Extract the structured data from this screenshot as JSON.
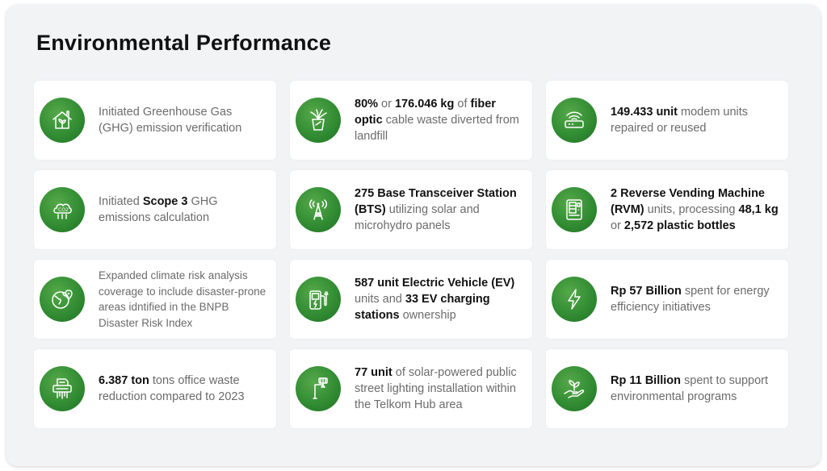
{
  "title": "Environmental Performance",
  "cards": [
    {
      "icon": "green-house-icon",
      "parts": [
        {
          "t": "Initiated Greenhouse Gas (GHG) emission verification",
          "b": false
        }
      ]
    },
    {
      "icon": "fiber-optic-bin-icon",
      "parts": [
        {
          "t": "80%",
          "b": true
        },
        {
          "t": " or ",
          "b": false
        },
        {
          "t": "176.046 kg",
          "b": true
        },
        {
          "t": " of ",
          "b": false
        },
        {
          "t": "fiber optic",
          "b": true
        },
        {
          "t": " cable waste diverted from landfill",
          "b": false
        }
      ]
    },
    {
      "icon": "modem-wifi-icon",
      "parts": [
        {
          "t": "149.433 unit",
          "b": true
        },
        {
          "t": " modem units repaired or reused",
          "b": false
        }
      ]
    },
    {
      "icon": "co2-cloud-icon",
      "parts": [
        {
          "t": "Initiated ",
          "b": false
        },
        {
          "t": "Scope 3",
          "b": true
        },
        {
          "t": " GHG emissions calculation",
          "b": false
        }
      ]
    },
    {
      "icon": "transmission-tower-icon",
      "parts": [
        {
          "t": "275 Base Transceiver Station (BTS)",
          "b": true
        },
        {
          "t": " utilizing solar and microhydro panels",
          "b": false
        }
      ]
    },
    {
      "icon": "vending-machine-icon",
      "parts": [
        {
          "t": "2 Reverse Vending Machine (RVM)",
          "b": true
        },
        {
          "t": "  units, processing ",
          "b": false
        },
        {
          "t": "48,1 kg",
          "b": true
        },
        {
          "t": " or ",
          "b": false
        },
        {
          "t": "2,572 plastic bottles",
          "b": true
        }
      ]
    },
    {
      "icon": "globe-pin-icon",
      "small": true,
      "parts": [
        {
          "t": "Expanded climate risk analysis coverage to include disaster-prone areas idntified in the BNPB Disaster Risk Index",
          "b": false
        }
      ]
    },
    {
      "icon": "ev-charger-icon",
      "parts": [
        {
          "t": "587 unit Electric Vehicle (EV)",
          "b": true
        },
        {
          "t": " units and ",
          "b": false
        },
        {
          "t": "33 EV charging stations",
          "b": true
        },
        {
          "t": " ownership",
          "b": false
        }
      ]
    },
    {
      "icon": "lightning-bolt-icon",
      "parts": [
        {
          "t": "Rp 57 Billion",
          "b": true
        },
        {
          "t": " spent for energy efficiency initiatives",
          "b": false
        }
      ]
    },
    {
      "icon": "paper-shredder-icon",
      "parts": [
        {
          "t": "6.387 ton",
          "b": true
        },
        {
          "t": " tons office waste reduction compared to 2023",
          "b": false
        }
      ]
    },
    {
      "icon": "street-light-icon",
      "parts": [
        {
          "t": "77 unit",
          "b": true
        },
        {
          "t": " of solar-powered public street lighting installation within the Telkom Hub area",
          "b": false
        }
      ]
    },
    {
      "icon": "hand-plant-icon",
      "parts": [
        {
          "t": "Rp 11 Billion",
          "b": true
        },
        {
          "t": " spent to support environmental programs",
          "b": false
        }
      ]
    }
  ]
}
